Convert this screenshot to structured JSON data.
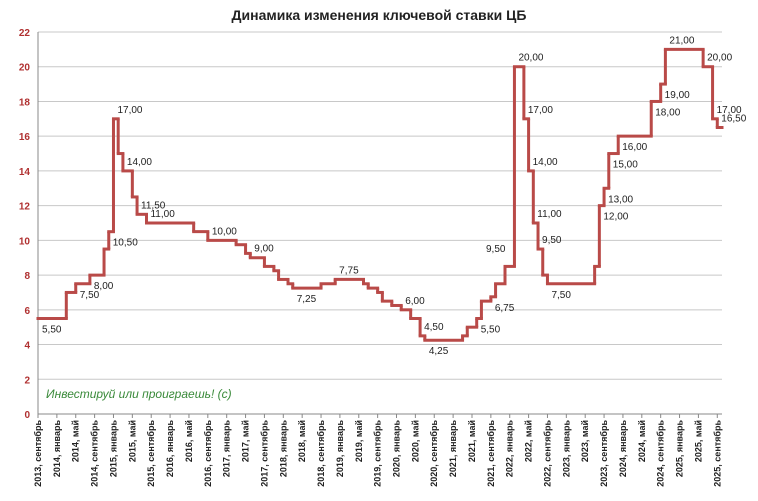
{
  "chart_data": {
    "type": "step",
    "title": "Динамика изменения ключевой ставки ЦБ",
    "annotations": [
      "Инвестируй или проиграешь! (с)",
      "9,50"
    ],
    "xlim": [
      "2013-09",
      "2025-10"
    ],
    "xticks": [
      {
        "value": "2013-09",
        "label": "2013, сентябрь"
      },
      {
        "value": "2014-01",
        "label": "2014, январь"
      },
      {
        "value": "2014-05",
        "label": "2014, май"
      },
      {
        "value": "2014-09",
        "label": "2014, сентябрь"
      },
      {
        "value": "2015-01",
        "label": "2015, январь"
      },
      {
        "value": "2015-05",
        "label": "2015, май"
      },
      {
        "value": "2015-09",
        "label": "2015, сентябрь"
      },
      {
        "value": "2016-01",
        "label": "2016, январь"
      },
      {
        "value": "2016-05",
        "label": "2016, май"
      },
      {
        "value": "2016-09",
        "label": "2016, сентябрь"
      },
      {
        "value": "2017-01",
        "label": "2017, январь"
      },
      {
        "value": "2017-05",
        "label": "2017, май"
      },
      {
        "value": "2017-09",
        "label": "2017, сентябрь"
      },
      {
        "value": "2018-01",
        "label": "2018, январь"
      },
      {
        "value": "2018-05",
        "label": "2018, май"
      },
      {
        "value": "2018-09",
        "label": "2018, сентябрь"
      },
      {
        "value": "2019-01",
        "label": "2019, январь"
      },
      {
        "value": "2019-05",
        "label": "2019, май"
      },
      {
        "value": "2019-09",
        "label": "2019, сентябрь"
      },
      {
        "value": "2020-01",
        "label": "2020, январь"
      },
      {
        "value": "2020-05",
        "label": "2020, май"
      },
      {
        "value": "2020-09",
        "label": "2020, сентябрь"
      },
      {
        "value": "2021-01",
        "label": "2021, январь"
      },
      {
        "value": "2021-05",
        "label": "2021, май"
      },
      {
        "value": "2021-09",
        "label": "2021, сентябрь"
      },
      {
        "value": "2022-01",
        "label": "2022, январь"
      },
      {
        "value": "2022-05",
        "label": "2022, май"
      },
      {
        "value": "2022-09",
        "label": "2022, сентябрь"
      },
      {
        "value": "2023-01",
        "label": "2023, январь"
      },
      {
        "value": "2023-05",
        "label": "2023, май"
      },
      {
        "value": "2023-09",
        "label": "2023, сентябрь"
      },
      {
        "value": "2024-01",
        "label": "2024, январь"
      },
      {
        "value": "2024-05",
        "label": "2024, май"
      },
      {
        "value": "2024-09",
        "label": "2024, сентябрь"
      },
      {
        "value": "2025-01",
        "label": "2025, январь"
      },
      {
        "value": "2025-05",
        "label": "2025, май"
      },
      {
        "value": "2025-09",
        "label": "2025, сентябрь"
      }
    ],
    "ylim": [
      0,
      22
    ],
    "yticks": [
      0,
      2,
      4,
      6,
      8,
      10,
      12,
      14,
      16,
      18,
      20,
      22
    ],
    "grid": true,
    "color": "#b94a48",
    "x": [
      "2013-09",
      "2014-03",
      "2014-05",
      "2014-08",
      "2014-11",
      "2014-12",
      "2015-01",
      "2015-02",
      "2015-03",
      "2015-05",
      "2015-06",
      "2015-08",
      "2016-06",
      "2016-09",
      "2017-03",
      "2017-05",
      "2017-06",
      "2017-09",
      "2017-11",
      "2017-12",
      "2018-02",
      "2018-03",
      "2018-09",
      "2018-12",
      "2019-06",
      "2019-07",
      "2019-09",
      "2019-10",
      "2019-12",
      "2020-02",
      "2020-04",
      "2020-06",
      "2020-07",
      "2021-03",
      "2021-04",
      "2021-06",
      "2021-07",
      "2021-09",
      "2021-10",
      "2021-12",
      "2022-02",
      "2022-04",
      "2022-05",
      "2022-06",
      "2022-07",
      "2022-08",
      "2022-09",
      "2023-07",
      "2023-08",
      "2023-09",
      "2023-10",
      "2023-12",
      "2024-07",
      "2024-09",
      "2024-10",
      "2025-06",
      "2025-08",
      "2025-09"
    ],
    "values": [
      5.5,
      7,
      7.5,
      8,
      9.5,
      10.5,
      17,
      15,
      14,
      12.5,
      11.5,
      11,
      10.5,
      10,
      9.75,
      9.25,
      9,
      8.5,
      8.25,
      7.75,
      7.5,
      7.25,
      7.5,
      7.75,
      7.5,
      7.25,
      7,
      6.5,
      6.25,
      6,
      5.5,
      4.5,
      4.25,
      4.5,
      5,
      5.5,
      6.5,
      6.75,
      7.5,
      8.5,
      20,
      17,
      14,
      11,
      9.5,
      8,
      7.5,
      8.5,
      12,
      13,
      15,
      16,
      18,
      19,
      21,
      20,
      17,
      16.5
    ],
    "value_labels": [
      "5,50",
      null,
      "7,50",
      "8,00",
      null,
      "10,50",
      "17,00",
      null,
      "14,00",
      null,
      "11,50",
      "11,00",
      null,
      "10,00",
      null,
      null,
      "9,00",
      null,
      null,
      null,
      null,
      "7,25",
      null,
      "7,75",
      null,
      null,
      null,
      null,
      null,
      "6,00",
      null,
      "4,50",
      "4,25",
      null,
      null,
      "5,50",
      null,
      "6,75",
      null,
      null,
      "20,00",
      "17,00",
      "14,00",
      "11,00",
      "9,50",
      null,
      "7,50",
      null,
      "12,00",
      "13,00",
      "15,00",
      "16,00",
      "18,00",
      "19,00",
      "21,00",
      "20,00",
      "17,00",
      "16,50"
    ]
  }
}
